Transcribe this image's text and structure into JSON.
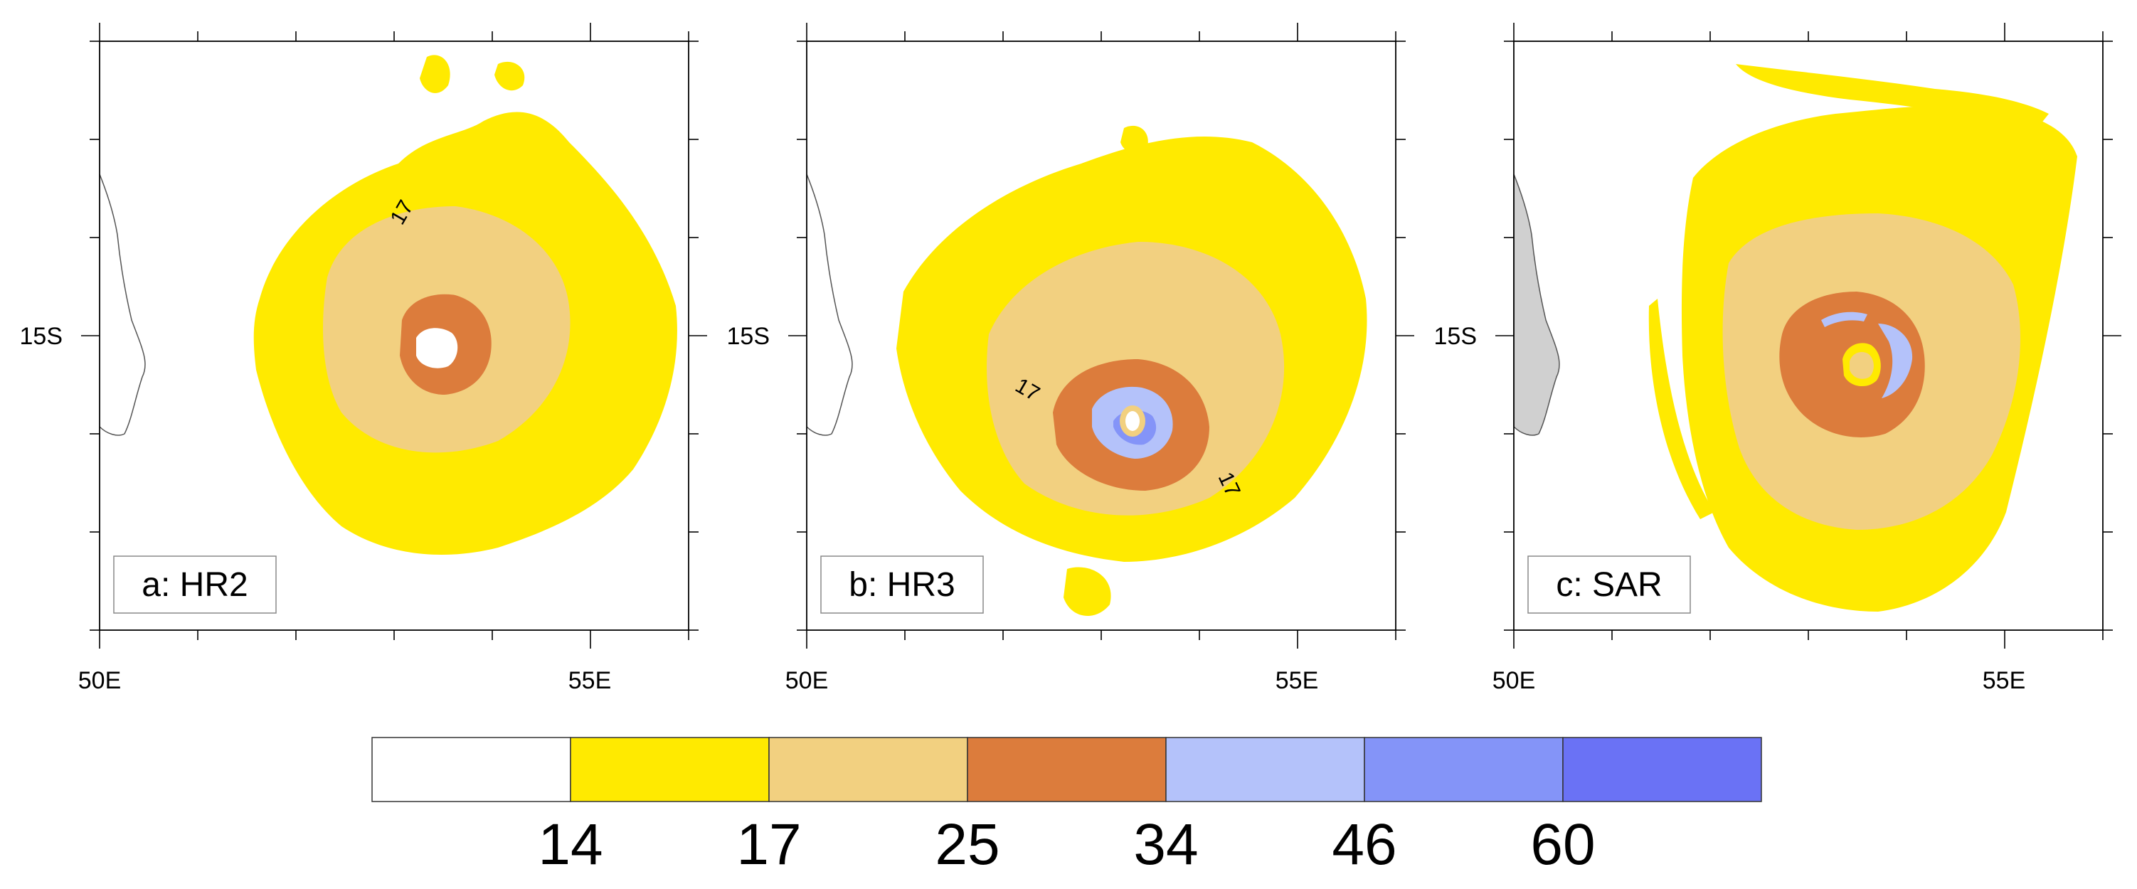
{
  "colors": {
    "band_below_14": "#ffffff",
    "band_14_17": "#ffea00",
    "band_17_25": "#f2d080",
    "band_25_34": "#dc7c3c",
    "band_34_46": "#b4c2fa",
    "band_46_60": "#8494f8",
    "band_60_plus": "#6a72f5",
    "land_sar": "#d0d0d0",
    "frame": "#000000"
  },
  "axes": {
    "lon_labels": [
      "50E",
      "55E"
    ],
    "lat_label": "15S"
  },
  "panels": [
    {
      "id": "a",
      "label": "a: HR2",
      "contour_labels": [
        "17"
      ],
      "land_fill": false
    },
    {
      "id": "b",
      "label": "b: HR3",
      "contour_labels": [
        "17",
        "17"
      ],
      "land_fill": false
    },
    {
      "id": "c",
      "label": "c: SAR",
      "contour_labels": [],
      "land_fill": true
    }
  ],
  "colorbar": {
    "boundaries": [
      "14",
      "17",
      "25",
      "34",
      "46",
      "60"
    ],
    "box_colors": [
      "#ffffff",
      "#ffea00",
      "#f2d080",
      "#dc7c3c",
      "#b4c2fa",
      "#8494f8",
      "#6a72f5"
    ]
  }
}
